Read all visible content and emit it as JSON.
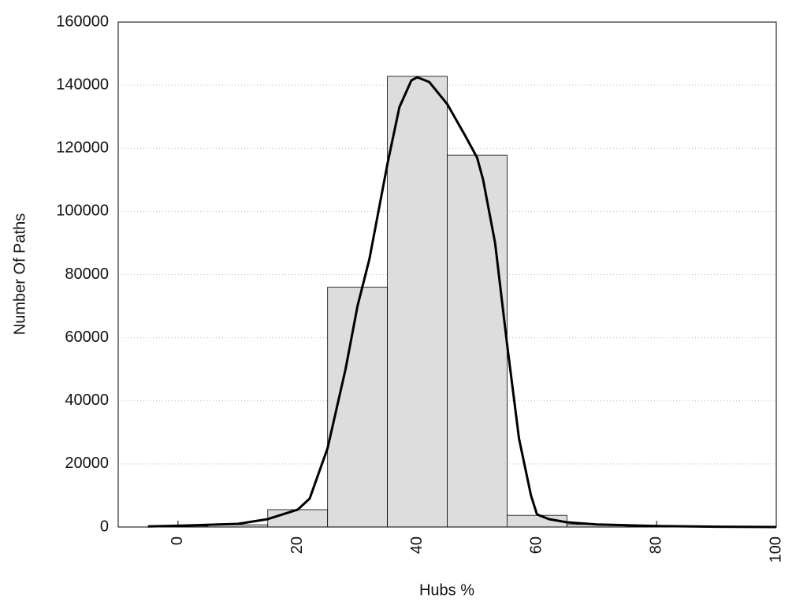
{
  "chart_data": {
    "type": "histogram",
    "xlabel": "Hubs %",
    "ylabel": "Number Of Paths",
    "bins": [
      -5,
      5,
      15,
      25,
      35,
      45,
      55,
      65,
      75,
      85,
      95
    ],
    "values": [
      300,
      700,
      5500,
      76000,
      142800,
      117800,
      3700,
      800,
      300,
      100
    ],
    "color": "#dddddd",
    "curve": {
      "type": "line",
      "color": "#000000",
      "x": [
        -5,
        0,
        10,
        15,
        20,
        22,
        25,
        28,
        30,
        32,
        35,
        37,
        39,
        40,
        42,
        45,
        48,
        50,
        51,
        53,
        55,
        57,
        59,
        60,
        62,
        65,
        70,
        80,
        90,
        100
      ],
      "values": [
        200,
        400,
        1000,
        2500,
        5500,
        9000,
        25000,
        50000,
        70000,
        85000,
        115000,
        133000,
        141500,
        142500,
        141000,
        134000,
        124000,
        117000,
        110000,
        90000,
        58000,
        28000,
        10000,
        4000,
        2500,
        1500,
        800,
        300,
        100,
        0
      ]
    },
    "xlim": [
      -10,
      100
    ],
    "ylim": [
      0,
      160000
    ],
    "xticks": [
      0,
      20,
      40,
      60,
      80,
      100
    ],
    "yticks": [
      0,
      20000,
      40000,
      60000,
      80000,
      100000,
      120000,
      140000,
      160000
    ],
    "grid": true
  }
}
